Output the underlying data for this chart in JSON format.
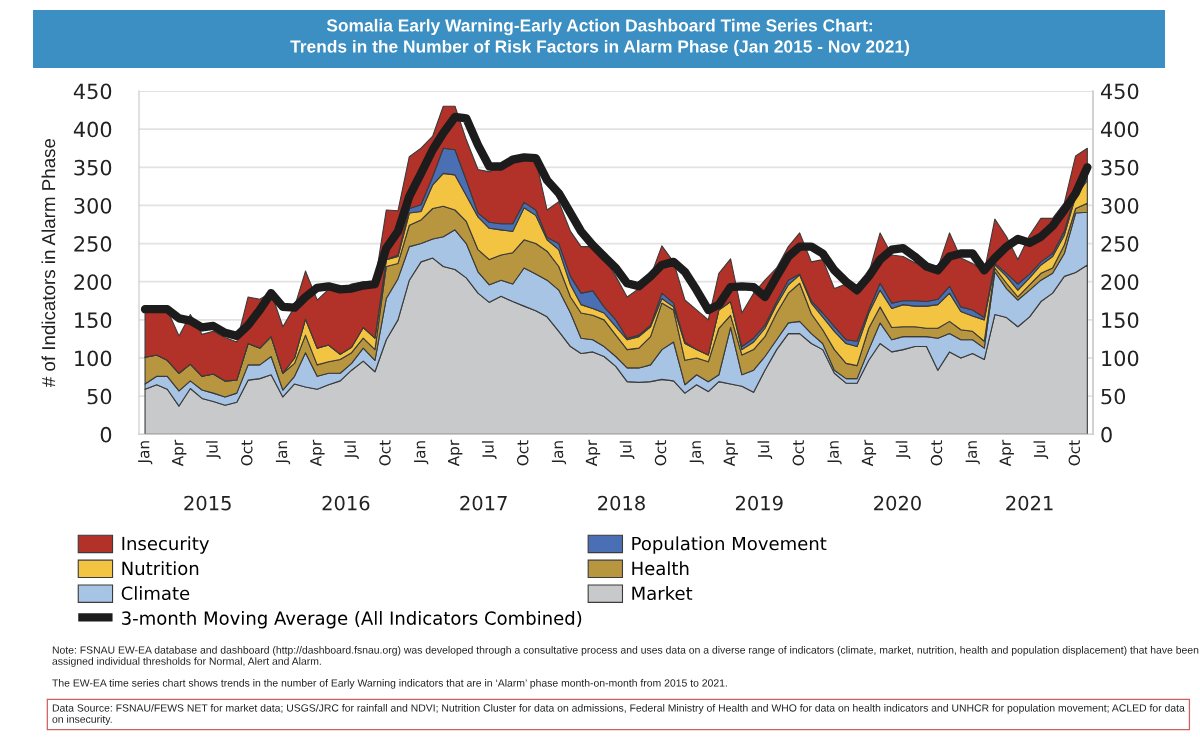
{
  "chart_data": {
    "type": "area",
    "stacked": true,
    "title": "Somalia Early Warning-Early Action Dashboard Time Series Chart:",
    "subtitle": "Trends in the Number of Risk Factors in Alarm Phase (Jan 2015 - Nov 2021)",
    "ylabel": "# of Indicators in Alarm Phase",
    "x": [
      "2015-01",
      "2015-02",
      "2015-03",
      "2015-04",
      "2015-05",
      "2015-06",
      "2015-07",
      "2015-08",
      "2015-09",
      "2015-10",
      "2015-11",
      "2015-12",
      "2016-01",
      "2016-02",
      "2016-03",
      "2016-04",
      "2016-05",
      "2016-06",
      "2016-07",
      "2016-08",
      "2016-09",
      "2016-10",
      "2016-11",
      "2016-12",
      "2017-01",
      "2017-02",
      "2017-03",
      "2017-04",
      "2017-05",
      "2017-06",
      "2017-07",
      "2017-08",
      "2017-09",
      "2017-10",
      "2017-11",
      "2017-12",
      "2018-01",
      "2018-02",
      "2018-03",
      "2018-04",
      "2018-05",
      "2018-06",
      "2018-07",
      "2018-08",
      "2018-09",
      "2018-10",
      "2018-11",
      "2018-12",
      "2019-01",
      "2019-02",
      "2019-03",
      "2019-04",
      "2019-05",
      "2019-06",
      "2019-07",
      "2019-08",
      "2019-09",
      "2019-10",
      "2019-11",
      "2019-12",
      "2020-01",
      "2020-02",
      "2020-03",
      "2020-04",
      "2020-05",
      "2020-06",
      "2020-07",
      "2020-08",
      "2020-09",
      "2020-10",
      "2020-11",
      "2020-12",
      "2021-01",
      "2021-02",
      "2021-03",
      "2021-04",
      "2021-05",
      "2021-06",
      "2021-07",
      "2021-08",
      "2021-09",
      "2021-10",
      "2021-11"
    ],
    "series": [
      {
        "name": "Market",
        "color": "#c8c9cb",
        "values": [
          59,
          65,
          59,
          37,
          60,
          47,
          43,
          38,
          42,
          71,
          73,
          78,
          49,
          66,
          62,
          59,
          65,
          70,
          84,
          96,
          82,
          124,
          150,
          202,
          226,
          231,
          220,
          216,
          205,
          185,
          173,
          181,
          174,
          168,
          162,
          154,
          135,
          115,
          106,
          108,
          102,
          89,
          69,
          68,
          69,
          72,
          70,
          54,
          65,
          56,
          69,
          66,
          63,
          55,
          84,
          111,
          132,
          132,
          119,
          111,
          80,
          67,
          67,
          97,
          119,
          108,
          111,
          115,
          115,
          84,
          108,
          100,
          106,
          98,
          157,
          153,
          141,
          154,
          174,
          185,
          207,
          212,
          222
        ]
      },
      {
        "name": "Climate",
        "color": "#a8c4e5",
        "values": [
          7,
          11,
          17,
          20,
          10,
          11,
          11,
          11,
          12,
          20,
          18,
          24,
          9,
          10,
          45,
          17,
          15,
          10,
          9,
          17,
          15,
          54,
          54,
          44,
          24,
          25,
          39,
          52,
          45,
          28,
          23,
          21,
          23,
          50,
          48,
          48,
          54,
          44,
          20,
          16,
          13,
          13,
          18,
          19,
          22,
          39,
          51,
          11,
          13,
          13,
          9,
          74,
          15,
          29,
          18,
          13,
          14,
          16,
          13,
          8,
          4,
          6,
          6,
          14,
          27,
          16,
          17,
          13,
          13,
          42,
          24,
          24,
          18,
          15,
          56,
          38,
          35,
          35,
          28,
          26,
          30,
          78,
          69
        ]
      },
      {
        "name": "Health",
        "color": "#b8963f",
        "values": [
          35,
          28,
          21,
          23,
          22,
          18,
          25,
          21,
          17,
          28,
          22,
          26,
          22,
          17,
          23,
          15,
          15,
          18,
          14,
          13,
          14,
          42,
          20,
          28,
          31,
          40,
          40,
          26,
          29,
          29,
          33,
          33,
          41,
          37,
          40,
          38,
          31,
          21,
          33,
          32,
          35,
          28,
          24,
          26,
          37,
          61,
          42,
          32,
          22,
          26,
          61,
          16,
          26,
          27,
          26,
          35,
          39,
          50,
          26,
          18,
          27,
          20,
          17,
          28,
          21,
          16,
          13,
          13,
          11,
          13,
          16,
          13,
          11,
          9,
          5,
          7,
          4,
          7,
          9,
          7,
          11,
          6,
          12
        ]
      },
      {
        "name": "Nutrition",
        "color": "#f3c342",
        "values": [
          0,
          0,
          0,
          0,
          0,
          0,
          0,
          0,
          0,
          0,
          0,
          0,
          0,
          7,
          21,
          22,
          22,
          7,
          7,
          14,
          15,
          9,
          9,
          16,
          11,
          31,
          43,
          46,
          34,
          43,
          41,
          33,
          28,
          42,
          37,
          15,
          22,
          16,
          11,
          9,
          9,
          11,
          13,
          15,
          13,
          6,
          4,
          22,
          11,
          9,
          24,
          18,
          7,
          10,
          11,
          11,
          11,
          11,
          14,
          17,
          24,
          26,
          25,
          20,
          22,
          25,
          29,
          27,
          29,
          31,
          37,
          24,
          20,
          28,
          4,
          9,
          9,
          9,
          11,
          15,
          13,
          16,
          30
        ]
      },
      {
        "name": "Population Movement",
        "color": "#4a6fb5",
        "values": [
          0,
          0,
          0,
          0,
          0,
          0,
          0,
          0,
          0,
          0,
          0,
          0,
          0,
          0,
          0,
          0,
          0,
          0,
          0,
          0,
          0,
          0,
          2,
          6,
          9,
          11,
          33,
          33,
          20,
          5,
          8,
          8,
          10,
          7,
          7,
          3,
          8,
          11,
          15,
          23,
          8,
          9,
          2,
          2,
          2,
          7,
          5,
          2,
          0,
          0,
          0,
          0,
          4,
          5,
          4,
          4,
          6,
          1,
          3,
          5,
          6,
          5,
          7,
          4,
          9,
          7,
          5,
          7,
          6,
          7,
          9,
          6,
          8,
          3,
          2,
          4,
          8,
          5,
          4,
          4,
          5,
          4,
          4
        ]
      },
      {
        "name": "Insecurity",
        "color": "#b23128",
        "values": [
          62,
          59,
          66,
          49,
          65,
          55,
          56,
          57,
          50,
          61,
          64,
          58,
          61,
          67,
          63,
          63,
          73,
          84,
          83,
          60,
          73,
          65,
          58,
          68,
          74,
          53,
          55,
          57,
          53,
          57,
          66,
          76,
          84,
          62,
          66,
          36,
          55,
          59,
          61,
          58,
          64,
          57,
          54,
          61,
          64,
          62,
          54,
          55,
          52,
          46,
          48,
          56,
          44,
          59,
          59,
          44,
          44,
          54,
          51,
          70,
          50,
          73,
          61,
          48,
          66,
          63,
          58,
          50,
          48,
          41,
          70,
          64,
          61,
          60,
          58,
          48,
          32,
          51,
          57,
          46,
          37,
          49,
          38
        ]
      },
      {
        "name": "3-month Moving Average (All Indicators Combined)",
        "type": "line",
        "color": "#1c1c1c",
        "values": [
          164,
          164,
          164,
          152,
          149,
          140,
          142,
          133,
          129,
          143,
          163,
          185,
          167,
          166,
          180,
          192,
          194,
          190,
          191,
          195,
          197,
          244,
          266,
          312,
          342,
          373,
          395,
          416,
          414,
          379,
          351,
          351,
          360,
          363,
          362,
          333,
          316,
          290,
          266,
          248,
          233,
          218,
          198,
          194,
          207,
          222,
          226,
          213,
          189,
          163,
          170,
          193,
          194,
          193,
          180,
          207,
          233,
          246,
          246,
          237,
          215,
          200,
          189,
          207,
          229,
          242,
          244,
          233,
          220,
          215,
          233,
          237,
          237,
          215,
          231,
          246,
          256,
          251,
          259,
          273,
          294,
          316,
          350
        ]
      }
    ],
    "xlim": [
      "2014-12-16",
      "2021-11-16"
    ],
    "xticks": [
      {
        "value": "2015-01",
        "label": "Jan"
      },
      {
        "value": "2015-04",
        "label": "Apr"
      },
      {
        "value": "2015-07",
        "label": "Jul"
      },
      {
        "value": "2015-10",
        "label": "Oct"
      },
      {
        "value": "2016-01",
        "label": "Jan"
      },
      {
        "value": "2016-04",
        "label": "Apr"
      },
      {
        "value": "2016-07",
        "label": "Jul"
      },
      {
        "value": "2016-10",
        "label": "Oct"
      },
      {
        "value": "2017-01",
        "label": "Jan"
      },
      {
        "value": "2017-04",
        "label": "Apr"
      },
      {
        "value": "2017-07",
        "label": "Jul"
      },
      {
        "value": "2017-10",
        "label": "Oct"
      },
      {
        "value": "2018-01",
        "label": "Jan"
      },
      {
        "value": "2018-04",
        "label": "Apr"
      },
      {
        "value": "2018-07",
        "label": "Jul"
      },
      {
        "value": "2018-10",
        "label": "Oct"
      },
      {
        "value": "2019-01",
        "label": "Jan"
      },
      {
        "value": "2019-04",
        "label": "Apr"
      },
      {
        "value": "2019-07",
        "label": "Jul"
      },
      {
        "value": "2019-10",
        "label": "Oct"
      },
      {
        "value": "2020-01",
        "label": "Jan"
      },
      {
        "value": "2020-04",
        "label": "Apr"
      },
      {
        "value": "2020-07",
        "label": "Jul"
      },
      {
        "value": "2020-10",
        "label": "Oct"
      },
      {
        "value": "2021-01",
        "label": "Jan"
      },
      {
        "value": "2021-04",
        "label": "Apr"
      },
      {
        "value": "2021-07",
        "label": "Jul"
      },
      {
        "value": "2021-10",
        "label": "Oct"
      }
    ],
    "x2lim": [
      "2014-12-16",
      "2021-11-16"
    ],
    "x2ticks": [
      {
        "value": "2015-06-16",
        "label": "2015"
      },
      {
        "value": "2016-06-16",
        "label": "2016"
      },
      {
        "value": "2017-06-16",
        "label": "2017"
      },
      {
        "value": "2018-06-16",
        "label": "2018"
      },
      {
        "value": "2019-06-16",
        "label": "2019"
      },
      {
        "value": "2020-06-16",
        "label": "2020"
      },
      {
        "value": "2021-06-01",
        "label": "2021"
      }
    ],
    "ylim": [
      0,
      450
    ],
    "yticks": [
      0,
      50,
      100,
      150,
      200,
      250,
      300,
      350,
      400,
      450
    ],
    "y2lim": [
      0,
      450
    ],
    "y2ticks": [
      0,
      50,
      100,
      150,
      200,
      250,
      300,
      350,
      400,
      450
    ],
    "grid": "y",
    "legend": "bottom",
    "annotations": [
      "Note: FSNAU EW-EA database and dashboard (http://dashboard.fsnau.org) was developed through a consultative process and uses data on a diverse range of indicators (climate, market, nutrition, health and population displacement) that have been assigned individual thresholds for Normal, Alert and Alarm.",
      "The EW-EA time series chart shows trends in the number of Early Warning indicators that are in ‘Alarm’ phase month-on-month from 2015 to 2021.",
      "Data Source: FSNAU/FEWS NET for market data; USGS/JRC for rainfall and NDVI; Nutrition Cluster for data on admissions, Federal Ministry of Health and WHO for data on health indicators and UNHCR for population movement; ACLED for data on insecurity."
    ]
  }
}
